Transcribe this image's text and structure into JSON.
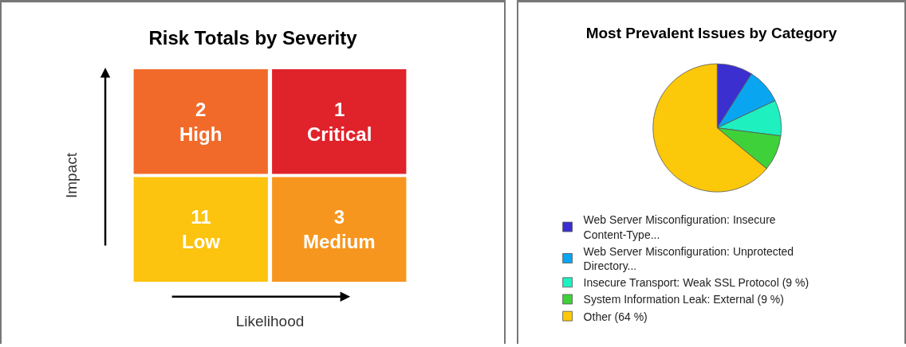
{
  "chart_data": [
    {
      "type": "heatmap",
      "title": "Risk Totals by Severity",
      "xlabel": "Likelihood",
      "ylabel": "Impact",
      "categories": [
        null,
        null
      ],
      "y_categories": [
        null,
        null
      ],
      "cells": [
        [
          2,
          1
        ],
        [
          11,
          3
        ]
      ],
      "cell_labels": [
        [
          "2\nHigh",
          "1\nCritical"
        ],
        [
          "11\nLow",
          "3\nMedium"
        ]
      ],
      "data_labels": true,
      "colors": [
        [
          "#f26a2a",
          "#e0222a"
        ],
        [
          "#fcc30f",
          "#f7961e"
        ]
      ]
    },
    {
      "type": "pie",
      "title": "Most Prevalent Issues by Category",
      "legend": "bottom left",
      "categories": [
        "Web Server Misconfiguration: Insecure Content-Type...",
        "Web Server Misconfiguration: Unprotected Directory...",
        "Insecure Transport: Weak SSL Protocol (9 %)",
        "System Information Leak: External (9 %)",
        "Other (64 %)"
      ],
      "values": [
        9,
        9,
        9,
        9,
        64
      ],
      "colors": [
        "#3b2fd0",
        "#0aa5f0",
        "#1ef0c0",
        "#3fd13a",
        "#fcc80a"
      ]
    }
  ]
}
